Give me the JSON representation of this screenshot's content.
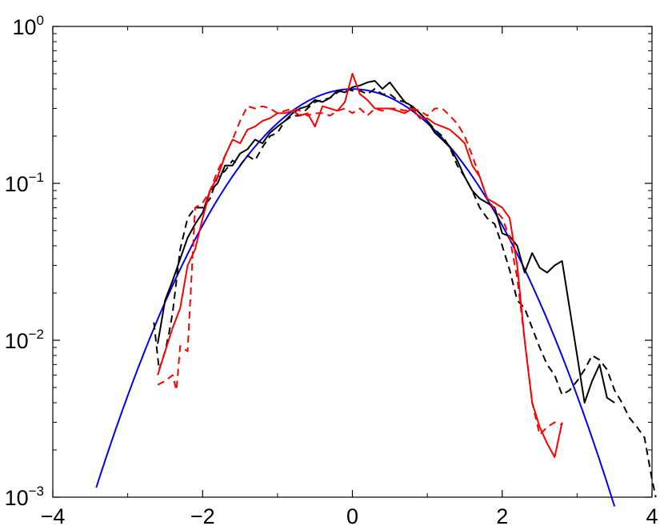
{
  "chart_data": {
    "type": "line",
    "title": "",
    "xlabel": "",
    "ylabel": "",
    "xlim": [
      -4,
      4
    ],
    "ylim": [
      0.001,
      1
    ],
    "yscale": "log",
    "grid": false,
    "legend": "none",
    "x_ticks": [
      {
        "value": -4,
        "label": "−4"
      },
      {
        "value": -2,
        "label": "−2"
      },
      {
        "value": 0,
        "label": "0"
      },
      {
        "value": 2,
        "label": "2"
      },
      {
        "value": 4,
        "label": "4"
      }
    ],
    "y_ticks": [
      {
        "value": 0.001,
        "base": "10",
        "exp": "−3"
      },
      {
        "value": 0.01,
        "base": "10",
        "exp": "−2"
      },
      {
        "value": 0.1,
        "base": "10",
        "exp": "−1"
      },
      {
        "value": 1,
        "base": "10",
        "exp": "0"
      }
    ],
    "series": [
      {
        "color": "#0000ff",
        "dash": false,
        "kind": "gaussian",
        "mean": 0,
        "sd": 1,
        "xrange": [
          -3.42,
          3.5
        ]
      },
      {
        "color": "#000000",
        "dash": false,
        "points": [
          [
            -2.6,
            0.0095
          ],
          [
            -2.5,
            0.018
          ],
          [
            -2.4,
            0.024
          ],
          [
            -2.3,
            0.033
          ],
          [
            -2.2,
            0.045
          ],
          [
            -2.1,
            0.055
          ],
          [
            -2.0,
            0.065
          ],
          [
            -1.9,
            0.09
          ],
          [
            -1.8,
            0.1
          ],
          [
            -1.7,
            0.13
          ],
          [
            -1.6,
            0.13
          ],
          [
            -1.5,
            0.155
          ],
          [
            -1.4,
            0.165
          ],
          [
            -1.3,
            0.19
          ],
          [
            -1.2,
            0.18
          ],
          [
            -1.1,
            0.21
          ],
          [
            -1.0,
            0.23
          ],
          [
            -0.9,
            0.25
          ],
          [
            -0.8,
            0.28
          ],
          [
            -0.7,
            0.3
          ],
          [
            -0.6,
            0.31
          ],
          [
            -0.5,
            0.34
          ],
          [
            -0.4,
            0.33
          ],
          [
            -0.3,
            0.35
          ],
          [
            -0.2,
            0.39
          ],
          [
            -0.1,
            0.38
          ],
          [
            0.0,
            0.41
          ],
          [
            0.1,
            0.42
          ],
          [
            0.2,
            0.44
          ],
          [
            0.3,
            0.45
          ],
          [
            0.4,
            0.4
          ],
          [
            0.5,
            0.44
          ],
          [
            0.6,
            0.38
          ],
          [
            0.7,
            0.33
          ],
          [
            0.8,
            0.31
          ],
          [
            0.9,
            0.28
          ],
          [
            1.0,
            0.25
          ],
          [
            1.1,
            0.21
          ],
          [
            1.2,
            0.19
          ],
          [
            1.3,
            0.17
          ],
          [
            1.4,
            0.14
          ],
          [
            1.5,
            0.11
          ],
          [
            1.6,
            0.09
          ],
          [
            1.7,
            0.08
          ],
          [
            1.8,
            0.075
          ],
          [
            1.9,
            0.07
          ],
          [
            2.0,
            0.048
          ],
          [
            2.1,
            0.046
          ],
          [
            2.2,
            0.04
          ],
          [
            2.3,
            0.027
          ],
          [
            2.4,
            0.036
          ],
          [
            2.5,
            0.029
          ],
          [
            2.6,
            0.027
          ],
          [
            2.7,
            0.03
          ],
          [
            2.8,
            0.032
          ],
          [
            2.9,
            0.016
          ],
          [
            3.0,
            0.008
          ],
          [
            3.1,
            0.004
          ],
          [
            3.2,
            0.0055
          ],
          [
            3.3,
            0.007
          ],
          [
            3.4,
            0.0043
          ],
          [
            3.5,
            0.004
          ]
        ]
      },
      {
        "color": "#000000",
        "dash": true,
        "points": [
          [
            -2.65,
            0.013
          ],
          [
            -2.58,
            0.0065
          ],
          [
            -2.5,
            0.0085
          ],
          [
            -2.45,
            0.011
          ],
          [
            -2.4,
            0.015
          ],
          [
            -2.3,
            0.038
          ],
          [
            -2.2,
            0.06
          ],
          [
            -2.1,
            0.07
          ],
          [
            -2.0,
            0.07
          ],
          [
            -1.9,
            0.08
          ],
          [
            -1.8,
            0.11
          ],
          [
            -1.7,
            0.12
          ],
          [
            -1.6,
            0.14
          ],
          [
            -1.5,
            0.13
          ],
          [
            -1.4,
            0.15
          ],
          [
            -1.3,
            0.14
          ],
          [
            -1.2,
            0.17
          ],
          [
            -1.1,
            0.2
          ],
          [
            -1.0,
            0.21
          ],
          [
            -0.9,
            0.25
          ],
          [
            -0.8,
            0.27
          ],
          [
            -0.7,
            0.27
          ],
          [
            -0.6,
            0.3
          ],
          [
            -0.5,
            0.33
          ],
          [
            -0.4,
            0.34
          ],
          [
            -0.3,
            0.35
          ],
          [
            -0.2,
            0.38
          ],
          [
            -0.1,
            0.4
          ],
          [
            0.0,
            0.39
          ],
          [
            0.1,
            0.39
          ],
          [
            0.2,
            0.37
          ],
          [
            0.3,
            0.4
          ],
          [
            0.4,
            0.37
          ],
          [
            0.5,
            0.37
          ],
          [
            0.6,
            0.34
          ],
          [
            0.7,
            0.33
          ],
          [
            0.8,
            0.3
          ],
          [
            0.9,
            0.28
          ],
          [
            1.0,
            0.25
          ],
          [
            1.1,
            0.22
          ],
          [
            1.2,
            0.2
          ],
          [
            1.3,
            0.17
          ],
          [
            1.4,
            0.13
          ],
          [
            1.5,
            0.11
          ],
          [
            1.6,
            0.09
          ],
          [
            1.7,
            0.07
          ],
          [
            1.8,
            0.06
          ],
          [
            1.9,
            0.055
          ],
          [
            2.0,
            0.04
          ],
          [
            2.1,
            0.028
          ],
          [
            2.2,
            0.018
          ],
          [
            2.3,
            0.016
          ],
          [
            2.4,
            0.012
          ],
          [
            2.5,
            0.009
          ],
          [
            2.6,
            0.007
          ],
          [
            2.7,
            0.006
          ],
          [
            2.8,
            0.0045
          ],
          [
            2.9,
            0.0048
          ],
          [
            3.0,
            0.0055
          ],
          [
            3.1,
            0.0065
          ],
          [
            3.2,
            0.008
          ],
          [
            3.3,
            0.0075
          ],
          [
            3.4,
            0.0065
          ],
          [
            3.5,
            0.0048
          ],
          [
            3.6,
            0.004
          ],
          [
            3.7,
            0.0032
          ],
          [
            3.8,
            0.0028
          ],
          [
            3.9,
            0.0024
          ],
          [
            4.0,
            0.0013
          ],
          [
            4.05,
            0.001
          ]
        ]
      },
      {
        "color": "#ff0000",
        "dash": false,
        "points": [
          [
            -2.6,
            0.006
          ],
          [
            -2.5,
            0.0085
          ],
          [
            -2.4,
            0.012
          ],
          [
            -2.3,
            0.016
          ],
          [
            -2.2,
            0.03
          ],
          [
            -2.1,
            0.038
          ],
          [
            -2.0,
            0.06
          ],
          [
            -1.9,
            0.09
          ],
          [
            -1.8,
            0.11
          ],
          [
            -1.7,
            0.15
          ],
          [
            -1.6,
            0.19
          ],
          [
            -1.5,
            0.18
          ],
          [
            -1.4,
            0.22
          ],
          [
            -1.3,
            0.23
          ],
          [
            -1.2,
            0.25
          ],
          [
            -1.1,
            0.26
          ],
          [
            -1.0,
            0.28
          ],
          [
            -0.9,
            0.28
          ],
          [
            -0.8,
            0.29
          ],
          [
            -0.7,
            0.27
          ],
          [
            -0.6,
            0.28
          ],
          [
            -0.5,
            0.23
          ],
          [
            -0.4,
            0.31
          ],
          [
            -0.3,
            0.3
          ],
          [
            -0.2,
            0.29
          ],
          [
            -0.1,
            0.33
          ],
          [
            0.0,
            0.5
          ],
          [
            0.1,
            0.37
          ],
          [
            0.2,
            0.34
          ],
          [
            0.3,
            0.3
          ],
          [
            0.4,
            0.3
          ],
          [
            0.5,
            0.3
          ],
          [
            0.6,
            0.29
          ],
          [
            0.7,
            0.28
          ],
          [
            0.8,
            0.3
          ],
          [
            0.9,
            0.26
          ],
          [
            1.0,
            0.26
          ],
          [
            1.1,
            0.24
          ],
          [
            1.2,
            0.23
          ],
          [
            1.3,
            0.22
          ],
          [
            1.4,
            0.2
          ],
          [
            1.5,
            0.18
          ],
          [
            1.6,
            0.13
          ],
          [
            1.7,
            0.11
          ],
          [
            1.8,
            0.08
          ],
          [
            1.9,
            0.075
          ],
          [
            2.0,
            0.07
          ],
          [
            2.1,
            0.06
          ],
          [
            2.2,
            0.03
          ],
          [
            2.3,
            0.01
          ],
          [
            2.4,
            0.004
          ],
          [
            2.5,
            0.0028
          ],
          [
            2.6,
            0.0022
          ],
          [
            2.7,
            0.0018
          ],
          [
            2.8,
            0.003
          ]
        ]
      },
      {
        "color": "#ff0000",
        "dash": true,
        "points": [
          [
            -2.6,
            0.0052
          ],
          [
            -2.5,
            0.0055
          ],
          [
            -2.4,
            0.006
          ],
          [
            -2.35,
            0.0048
          ],
          [
            -2.3,
            0.0092
          ],
          [
            -2.2,
            0.0085
          ],
          [
            -2.1,
            0.07
          ],
          [
            -2.0,
            0.075
          ],
          [
            -1.9,
            0.09
          ],
          [
            -1.8,
            0.12
          ],
          [
            -1.7,
            0.15
          ],
          [
            -1.6,
            0.19
          ],
          [
            -1.5,
            0.25
          ],
          [
            -1.4,
            0.31
          ],
          [
            -1.3,
            0.3
          ],
          [
            -1.2,
            0.31
          ],
          [
            -1.1,
            0.3
          ],
          [
            -1.0,
            0.28
          ],
          [
            -0.9,
            0.29
          ],
          [
            -0.8,
            0.3
          ],
          [
            -0.7,
            0.29
          ],
          [
            -0.6,
            0.27
          ],
          [
            -0.5,
            0.28
          ],
          [
            -0.4,
            0.28
          ],
          [
            -0.3,
            0.27
          ],
          [
            -0.2,
            0.29
          ],
          [
            -0.1,
            0.3
          ],
          [
            0.0,
            0.28
          ],
          [
            0.1,
            0.3
          ],
          [
            0.2,
            0.27
          ],
          [
            0.3,
            0.3
          ],
          [
            0.4,
            0.29
          ],
          [
            0.5,
            0.3
          ],
          [
            0.6,
            0.3
          ],
          [
            0.7,
            0.29
          ],
          [
            0.8,
            0.3
          ],
          [
            0.9,
            0.29
          ],
          [
            1.0,
            0.27
          ],
          [
            1.1,
            0.3
          ],
          [
            1.2,
            0.3
          ],
          [
            1.3,
            0.27
          ],
          [
            1.4,
            0.24
          ],
          [
            1.5,
            0.2
          ],
          [
            1.6,
            0.15
          ],
          [
            1.7,
            0.11
          ],
          [
            1.8,
            0.08
          ],
          [
            1.9,
            0.068
          ],
          [
            2.0,
            0.06
          ],
          [
            2.1,
            0.045
          ],
          [
            2.2,
            0.025
          ],
          [
            2.3,
            0.01
          ],
          [
            2.4,
            0.004
          ],
          [
            2.5,
            0.0025
          ],
          [
            2.6,
            0.0028
          ],
          [
            2.7,
            0.003
          ],
          [
            2.8,
            0.0029
          ]
        ]
      }
    ]
  }
}
